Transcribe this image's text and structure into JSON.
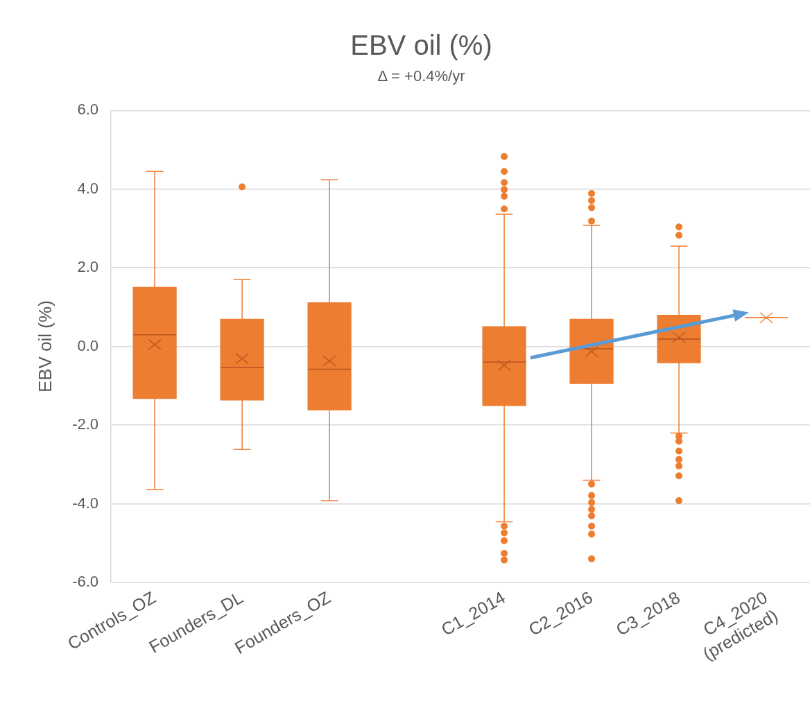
{
  "chart_data": {
    "type": "box",
    "title": "EBV oil (%)",
    "subtitle": "Δ = +0.4%/yr",
    "ylabel": "EBV oil (%)",
    "categories": [
      "Controls_OZ",
      "Founders_DL",
      "Founders_OZ",
      null,
      "C1_2014",
      "C2_2016",
      "C3_2018",
      "C4_2020\n(predicted)"
    ],
    "color": "#ed7d31",
    "boxes": [
      {
        "low": -3.64,
        "q1": -1.32,
        "median": 0.3,
        "q3": 1.5,
        "high": 4.45,
        "mean": 0.05
      },
      {
        "low": -2.62,
        "q1": -1.36,
        "median": -0.54,
        "q3": 0.69,
        "high": 1.7,
        "mean": -0.31,
        "outliers": [
          4.06
        ]
      },
      {
        "low": -3.92,
        "q1": -1.61,
        "median": -0.58,
        "q3": 1.11,
        "high": 4.24,
        "mean": -0.37
      },
      null,
      {
        "low": -4.46,
        "q1": -1.5,
        "median": -0.4,
        "q3": 0.5,
        "high": 3.36,
        "mean": -0.48,
        "outliers": [
          4.83,
          4.45,
          4.17,
          3.99,
          3.82,
          3.5,
          -4.57,
          -4.74,
          -4.94,
          -5.26,
          -5.43
        ]
      },
      {
        "low": -3.4,
        "q1": -0.94,
        "median": -0.06,
        "q3": 0.69,
        "high": 3.08,
        "mean": -0.13,
        "outliers": [
          3.89,
          3.71,
          3.53,
          3.19,
          -3.5,
          -3.79,
          -3.97,
          -4.14,
          -4.31,
          -4.57,
          -4.77,
          -5.4
        ]
      },
      {
        "low": -2.2,
        "q1": -0.41,
        "median": 0.19,
        "q3": 0.79,
        "high": 2.55,
        "mean": 0.23,
        "outliers": [
          3.04,
          2.83,
          -2.28,
          -2.41,
          -2.66,
          -2.87,
          -3.04,
          -3.29,
          -3.92
        ]
      },
      {
        "low": 0.73,
        "q1": 0.73,
        "median": 0.73,
        "q3": 0.73,
        "high": 0.73,
        "mean": 0.73
      }
    ],
    "ylim": [
      -6,
      6
    ],
    "yticks": [
      {
        "value": -6,
        "label": "-6.0"
      },
      {
        "value": -4,
        "label": "-4.0"
      },
      {
        "value": -2,
        "label": "-2.0"
      },
      {
        "value": 0,
        "label": "0.0"
      },
      {
        "value": 2,
        "label": "2.0"
      },
      {
        "value": 4,
        "label": "4.0"
      },
      {
        "value": 6,
        "label": "6.0"
      }
    ],
    "grid": "y"
  }
}
